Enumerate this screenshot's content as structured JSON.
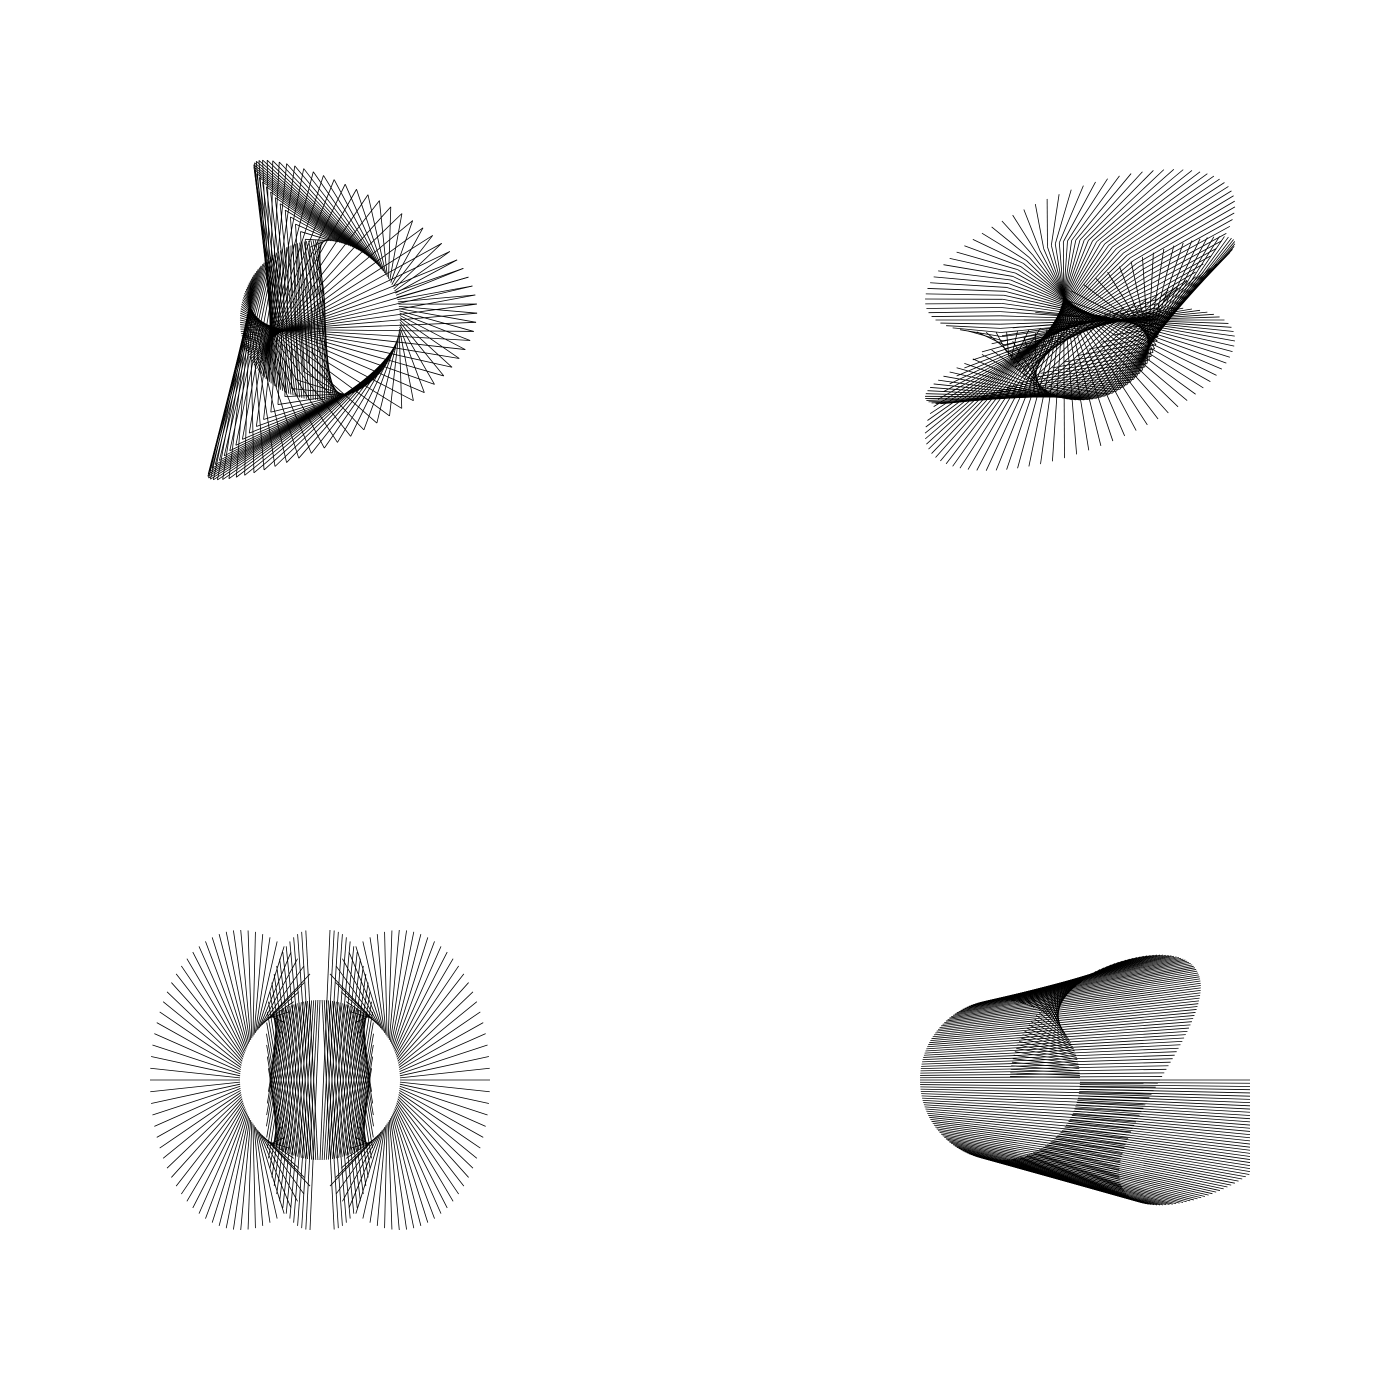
{
  "background_color": "#ffffff",
  "line_color": "#000000",
  "figures": [
    {
      "id": "top-left",
      "description_key": "string-art-figure"
    },
    {
      "id": "top-right",
      "description_key": "string-art-figure"
    },
    {
      "id": "bottom-left",
      "description_key": "string-art-figure"
    },
    {
      "id": "bottom-right",
      "description_key": "string-art-figure"
    }
  ]
}
